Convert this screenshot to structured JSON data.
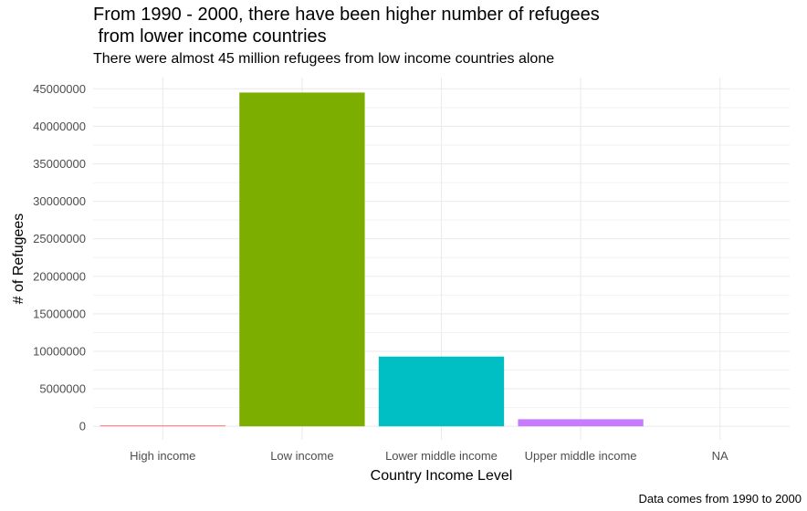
{
  "chart_data": {
    "type": "bar",
    "title": "From 1990 - 2000, there have been higher number of refugees\n from lower income countries",
    "subtitle": "There were almost 45 million refugees from low income countries alone",
    "caption": "Data comes from 1990 to 2000",
    "xlabel": "Country Income Level",
    "ylabel": "# of Refugees",
    "categories": [
      "High income",
      "Low income",
      "Lower middle income",
      "Upper middle income",
      "NA"
    ],
    "values": [
      110000,
      44500000,
      9300000,
      950000,
      0
    ],
    "colors": [
      "#F8766D",
      "#7CAE00",
      "#00BFC4",
      "#C77CFF",
      "#999999"
    ],
    "yticks": [
      0,
      5000000,
      10000000,
      15000000,
      20000000,
      25000000,
      30000000,
      35000000,
      40000000,
      45000000
    ],
    "ytick_labels": [
      "0",
      "5000000",
      "10000000",
      "15000000",
      "20000000",
      "25000000",
      "30000000",
      "35000000",
      "40000000",
      "45000000"
    ],
    "ylim": [
      -1800000,
      46500000
    ],
    "grid": true,
    "legend": "none"
  }
}
